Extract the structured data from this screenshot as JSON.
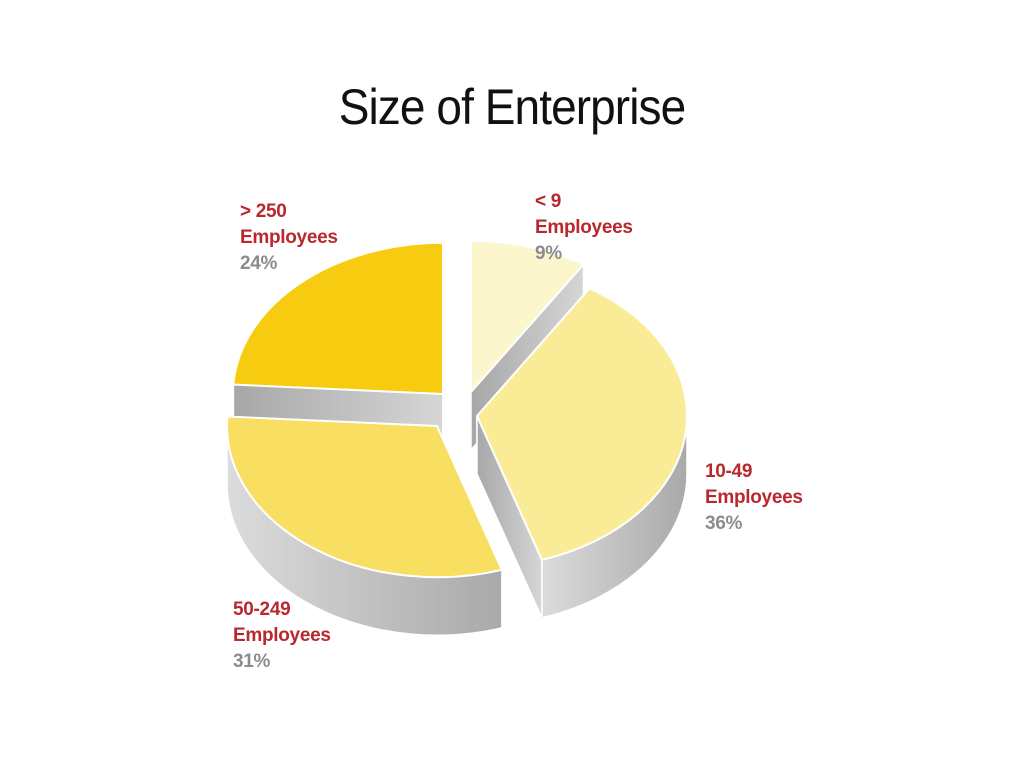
{
  "title": "Size of Enterprise",
  "chart_data": {
    "type": "pie",
    "title": "Size of Enterprise",
    "slices": [
      {
        "key": "s9",
        "label_line1": "< 9",
        "label_line2": "Employees",
        "value_label": "9%",
        "value": 9,
        "color": "#fcf6cc"
      },
      {
        "key": "s10_49",
        "label_line1": "10-49",
        "label_line2": "Employees",
        "value_label": "36%",
        "value": 36,
        "color": "#faeb96"
      },
      {
        "key": "s50_249",
        "label_line1": "50-249",
        "label_line2": "Employees",
        "value_label": "31%",
        "value": 31,
        "color": "#f8df62"
      },
      {
        "key": "s250",
        "label_line1": "> 250",
        "label_line2": "Employees",
        "value_label": "24%",
        "value": 24,
        "color": "#f7cb10"
      }
    ],
    "colors": {
      "category_label": "#b8282c",
      "value_label": "#8c8c8c",
      "side": "#c4c4c4"
    }
  }
}
